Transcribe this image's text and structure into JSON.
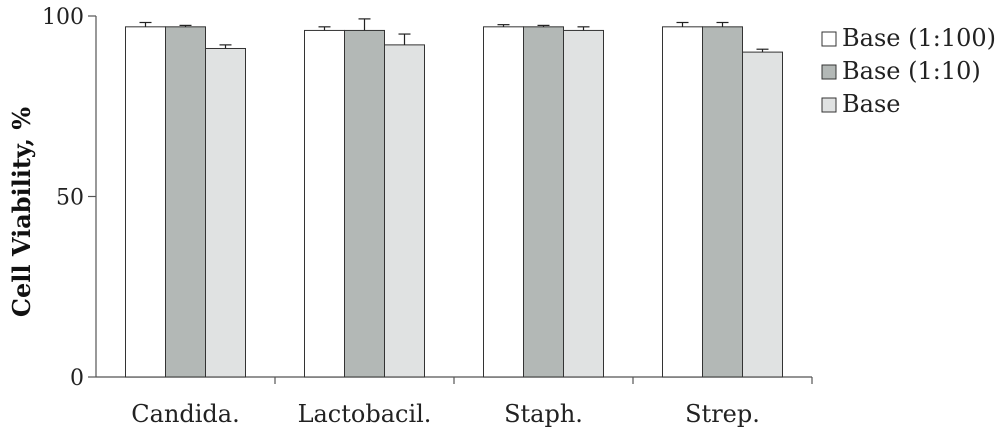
{
  "chart_data": {
    "type": "bar",
    "title": "",
    "xlabel": "",
    "ylabel": "Cell Viability, %",
    "ylim": [
      0,
      100
    ],
    "yticks": [
      0,
      50,
      100
    ],
    "categories": [
      "Candida.",
      "Lactobacil.",
      "Staph.",
      "Strep."
    ],
    "series": [
      {
        "name": "Base (1:100)",
        "color": "#ffffff",
        "values": [
          97,
          96,
          97,
          97
        ],
        "errors": [
          1.2,
          1.0,
          0.6,
          1.2
        ]
      },
      {
        "name": "Base (1:10)",
        "color": "#b3b8b6",
        "values": [
          97,
          96,
          97,
          97
        ],
        "errors": [
          0.4,
          3.2,
          0.4,
          1.2
        ]
      },
      {
        "name": "Base",
        "color": "#e0e2e2",
        "values": [
          91,
          92,
          96,
          90
        ],
        "errors": [
          1.0,
          3.0,
          1.0,
          0.8
        ]
      }
    ],
    "grid": false,
    "legend_position": "top-right"
  }
}
